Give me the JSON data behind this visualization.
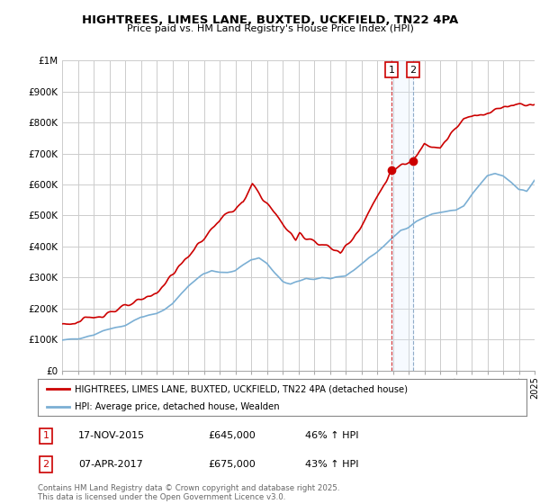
{
  "title": "HIGHTREES, LIMES LANE, BUXTED, UCKFIELD, TN22 4PA",
  "subtitle": "Price paid vs. HM Land Registry's House Price Index (HPI)",
  "line1_color": "#cc0000",
  "line2_color": "#7bafd4",
  "background_color": "#ffffff",
  "grid_color": "#cccccc",
  "legend_label1": "HIGHTREES, LIMES LANE, BUXTED, UCKFIELD, TN22 4PA (detached house)",
  "legend_label2": "HPI: Average price, detached house, Wealden",
  "annotation1_label": "1",
  "annotation1_date": "17-NOV-2015",
  "annotation1_price": "£645,000",
  "annotation1_hpi": "46% ↑ HPI",
  "annotation2_label": "2",
  "annotation2_date": "07-APR-2017",
  "annotation2_price": "£675,000",
  "annotation2_hpi": "43% ↑ HPI",
  "footnote": "Contains HM Land Registry data © Crown copyright and database right 2025.\nThis data is licensed under the Open Government Licence v3.0.",
  "ann1_x": 2015.92,
  "ann1_y": 645000,
  "ann2_x": 2017.27,
  "ann2_y": 675000,
  "xmin": 1995,
  "xmax": 2025,
  "ylim": [
    0,
    1000000
  ],
  "yticks": [
    0,
    100000,
    200000,
    300000,
    400000,
    500000,
    600000,
    700000,
    800000,
    900000,
    1000000
  ],
  "ytick_labels": [
    "£0",
    "£100K",
    "£200K",
    "£300K",
    "£400K",
    "£500K",
    "£600K",
    "£700K",
    "£800K",
    "£900K",
    "£1M"
  ],
  "shade_color": "#ddeeff",
  "pp_x": [
    1995.83,
    1999.58,
    2001.0,
    2005.08,
    2006.5,
    2007.08,
    2009.83,
    2010.08,
    2012.67,
    2013.5,
    2014.25,
    2015.92,
    2017.27,
    2018.0,
    2019.0,
    2020.5,
    2023.75
  ],
  "pp_y": [
    152000,
    215000,
    251000,
    490000,
    540000,
    600000,
    420000,
    440000,
    380000,
    430000,
    490000,
    645000,
    675000,
    735000,
    720000,
    810000,
    860000
  ]
}
